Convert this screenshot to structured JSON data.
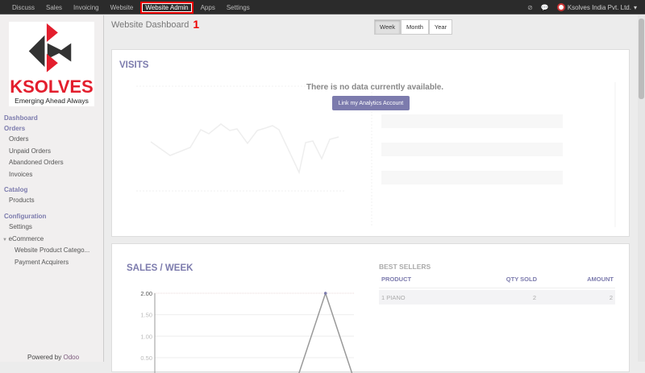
{
  "topbar": {
    "menu": [
      "Discuss",
      "Sales",
      "Invoicing",
      "Website",
      "Website Admin",
      "Apps",
      "Settings"
    ],
    "active": "Website Admin",
    "company": "Ksolves India Pvt. Ltd.",
    "icons": [
      "help-icon",
      "chat-icon",
      "caret-down-icon"
    ]
  },
  "logo": {
    "text": "KSOLVES",
    "tagline": "Emerging Ahead Always"
  },
  "sidebar": {
    "dashboard": "Dashboard",
    "orders": {
      "label": "Orders",
      "items": [
        "Orders",
        "Unpaid Orders",
        "Abandoned Orders",
        "Invoices"
      ]
    },
    "catalog": {
      "label": "Catalog",
      "items": [
        "Products"
      ]
    },
    "configuration": {
      "label": "Configuration",
      "items": [
        "Settings"
      ],
      "ecommerce": "eCommerce",
      "sub": [
        "Website Product Catego...",
        "Payment Acquirers"
      ]
    },
    "powered": "Powered by",
    "odoo": "Odoo"
  },
  "page": {
    "title": "Website Dashboard",
    "annotation": "1",
    "periods": [
      "Week",
      "Month",
      "Year"
    ],
    "selected_period": "Week"
  },
  "visits": {
    "title": "VISITS",
    "no_data": "There is no data currently available.",
    "link_button": "Link my Analytics Account"
  },
  "sales": {
    "title": "SALES / WEEK"
  },
  "best_sellers": {
    "title": "BEST SELLERS",
    "columns": [
      "PRODUCT",
      "QTY SOLD",
      "AMOUNT"
    ],
    "rows": [
      [
        "1 PIANO",
        "2",
        "2"
      ]
    ]
  },
  "chart_data": {
    "type": "line",
    "title": "SALES / WEEK",
    "y_ticks": [
      "2.00",
      "1.50",
      "1.00",
      "0.50"
    ],
    "ylim": [
      0,
      2
    ],
    "values": [
      0,
      0,
      0,
      0,
      0,
      0,
      2,
      0
    ],
    "grid": true,
    "colors": {
      "line": "#999999",
      "point": "#7c7bad"
    }
  },
  "colors": {
    "accent": "#7c7bad",
    "topbar": "#2b2b2b",
    "annotation": "#ee0000"
  }
}
